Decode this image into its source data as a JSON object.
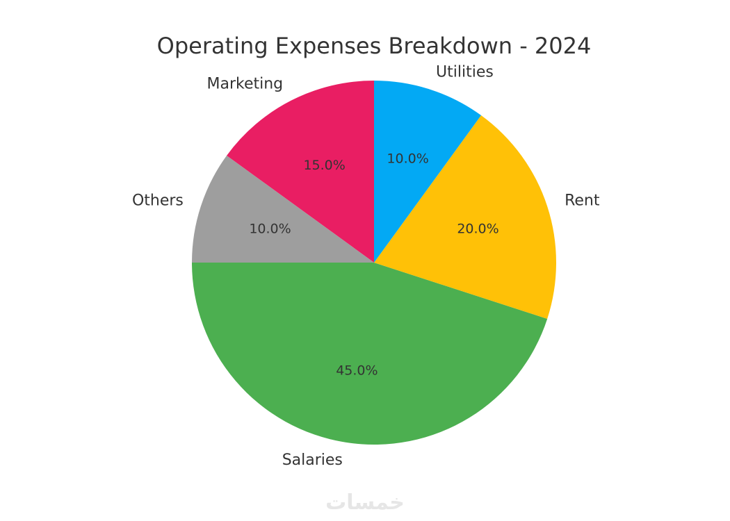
{
  "chart_data": {
    "type": "pie",
    "title": "Operating Expenses Breakdown - 2024",
    "start_angle_deg": 90,
    "direction": "counterclockwise",
    "slices": [
      {
        "label": "Marketing",
        "value": 15.0,
        "value_label": "15.0%",
        "color": "#e91e63"
      },
      {
        "label": "Others",
        "value": 10.0,
        "value_label": "10.0%",
        "color": "#9e9e9e"
      },
      {
        "label": "Salaries",
        "value": 45.0,
        "value_label": "45.0%",
        "color": "#4caf50"
      },
      {
        "label": "Rent",
        "value": 20.0,
        "value_label": "20.0%",
        "color": "#ffc107"
      },
      {
        "label": "Utilities",
        "value": 10.0,
        "value_label": "10.0%",
        "color": "#03a9f4"
      }
    ]
  },
  "watermark": {
    "text": "خمسات"
  }
}
